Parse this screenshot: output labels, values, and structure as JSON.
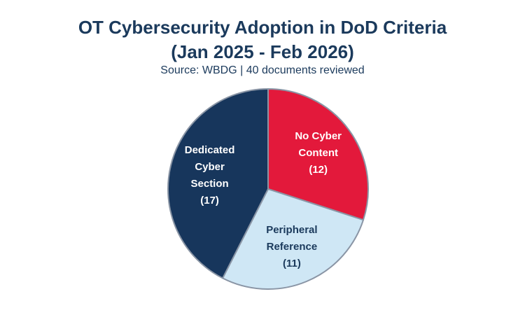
{
  "chart_data": {
    "type": "pie",
    "title_line1": "OT Cybersecurity Adoption in DoD Criteria",
    "title_line2": "(Jan 2025 - Feb 2026)",
    "subtitle": "Source: WBDG | 40 documents reviewed",
    "start_angle_deg": 0,
    "direction": "clockwise",
    "slices": [
      {
        "lines": [
          "No Cyber",
          "Content",
          "(12)"
        ],
        "value": 12,
        "color": "#e3193b",
        "text_color": "#ffffff"
      },
      {
        "lines": [
          "Peripheral",
          "Reference",
          "(11)"
        ],
        "value": 11,
        "color": "#cfe7f5",
        "text_color": "#1b3a5c"
      },
      {
        "lines": [
          "Dedicated",
          "Cyber",
          "Section",
          "(17)"
        ],
        "value": 17,
        "color": "#17365c",
        "text_color": "#ffffff"
      }
    ],
    "edge_color": "#8a95a5"
  }
}
